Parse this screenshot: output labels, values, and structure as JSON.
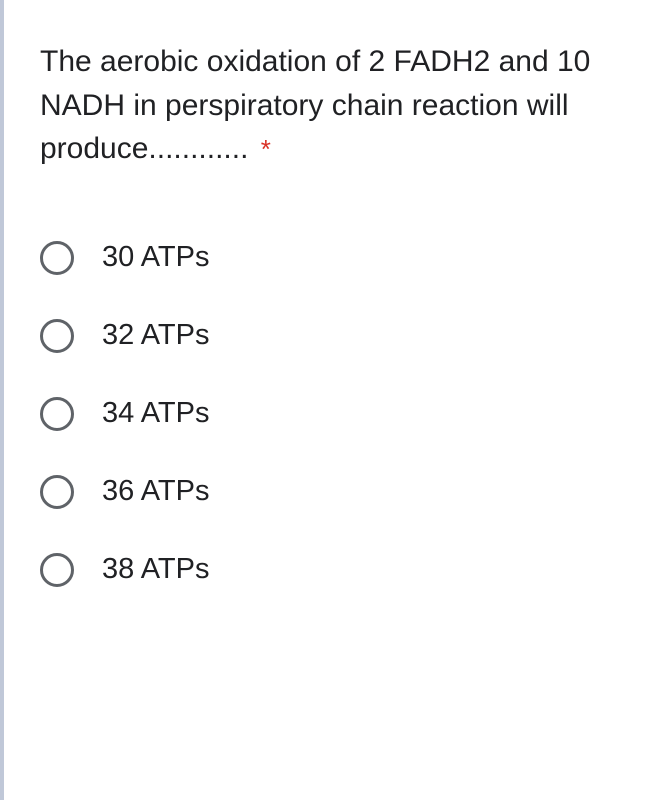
{
  "question": {
    "text": "The aerobic oxidation of 2 FADH2 and 10 NADH in perspiratory chain reaction will produce............",
    "required": true,
    "asterisk": "*"
  },
  "options": [
    {
      "label": "30 ATPs",
      "selected": false
    },
    {
      "label": "32 ATPs",
      "selected": false
    },
    {
      "label": "34 ATPs",
      "selected": false
    },
    {
      "label": "36 ATPs",
      "selected": false
    },
    {
      "label": "38 ATPs",
      "selected": false
    }
  ],
  "colors": {
    "text": "#202124",
    "radio_border": "#5f6368",
    "required": "#d93025",
    "page_border": "#c0c8d8",
    "background": "#ffffff"
  }
}
